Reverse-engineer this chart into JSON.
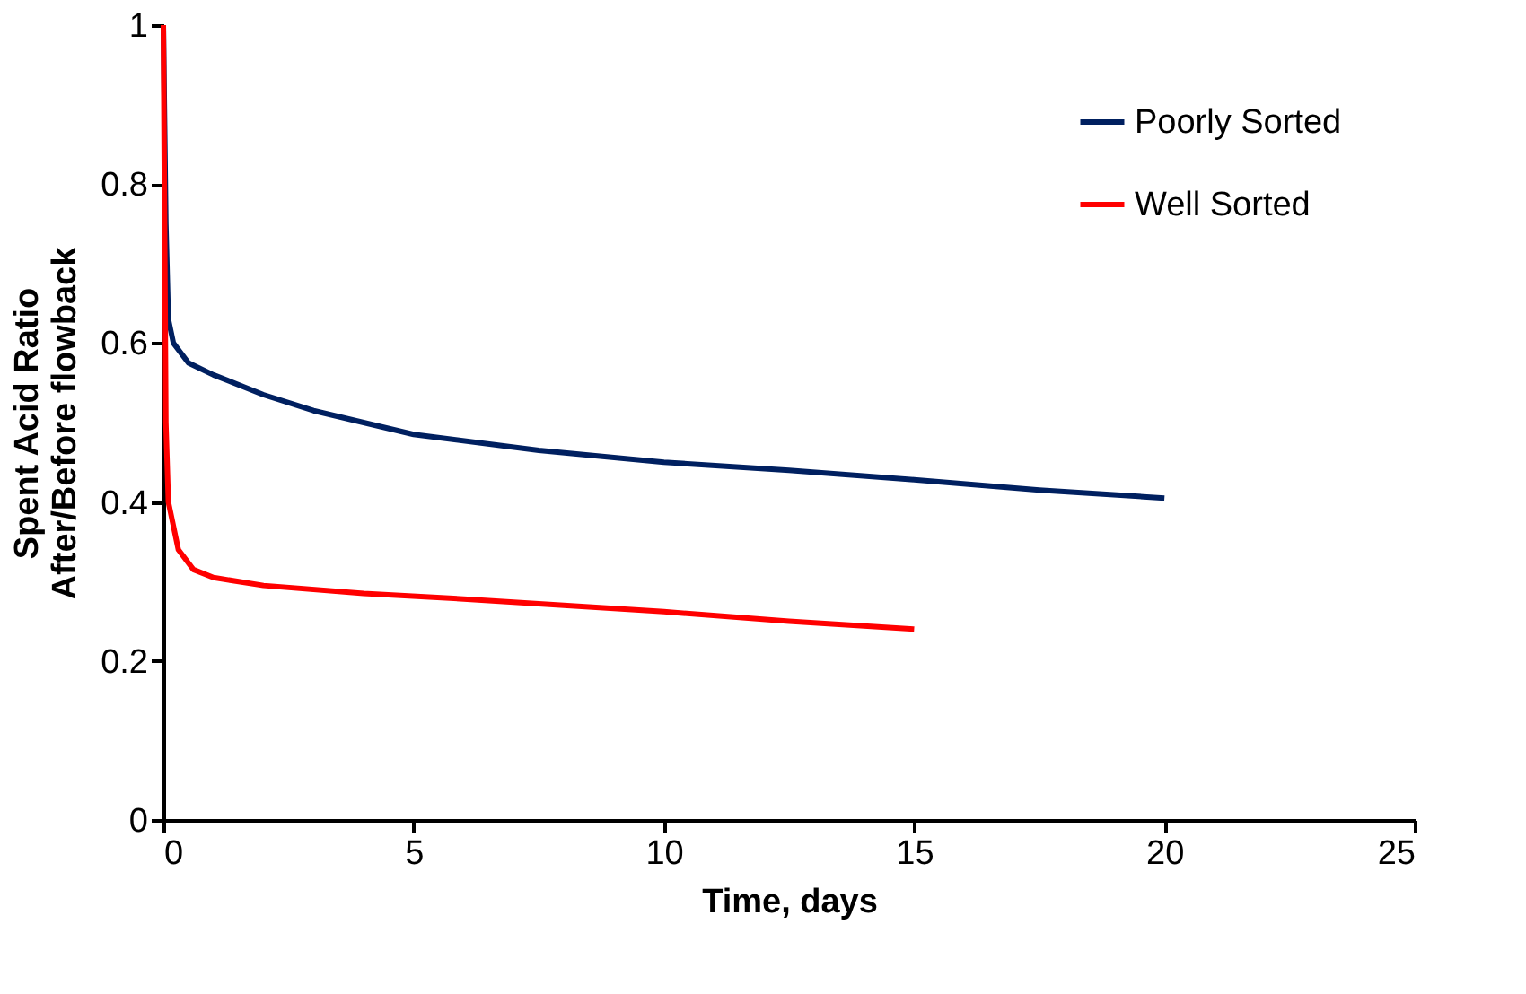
{
  "chart_data": {
    "type": "line",
    "xlabel": "Time, days",
    "ylabel": "Spent Acid Ratio\nAfter/Before flowback",
    "xlim": [
      0,
      25
    ],
    "xticks": [
      0,
      5,
      10,
      15,
      20,
      25
    ],
    "ylim": [
      0,
      1
    ],
    "yticks": [
      0,
      0.2,
      0.4,
      0.6,
      0.8,
      1
    ],
    "grid": false,
    "legend": "top right",
    "marker": "none",
    "line_style": "solid",
    "series": [
      {
        "name": "Poorly Sorted",
        "color": "#002060",
        "x": [
          0,
          0.05,
          0.1,
          0.2,
          0.5,
          1,
          2,
          3,
          5,
          7.5,
          10,
          12.5,
          15,
          17.5,
          20
        ],
        "values": [
          1.0,
          0.75,
          0.63,
          0.6,
          0.575,
          0.56,
          0.535,
          0.515,
          0.485,
          0.465,
          0.45,
          0.44,
          0.428,
          0.415,
          0.405
        ]
      },
      {
        "name": "Well Sorted",
        "color": "#ff0000",
        "x": [
          0,
          0.05,
          0.1,
          0.3,
          0.6,
          1,
          2,
          4,
          6,
          8,
          10,
          12.5,
          15
        ],
        "values": [
          1.0,
          0.5,
          0.4,
          0.34,
          0.315,
          0.305,
          0.295,
          0.285,
          0.278,
          0.27,
          0.262,
          0.25,
          0.24
        ]
      }
    ]
  }
}
